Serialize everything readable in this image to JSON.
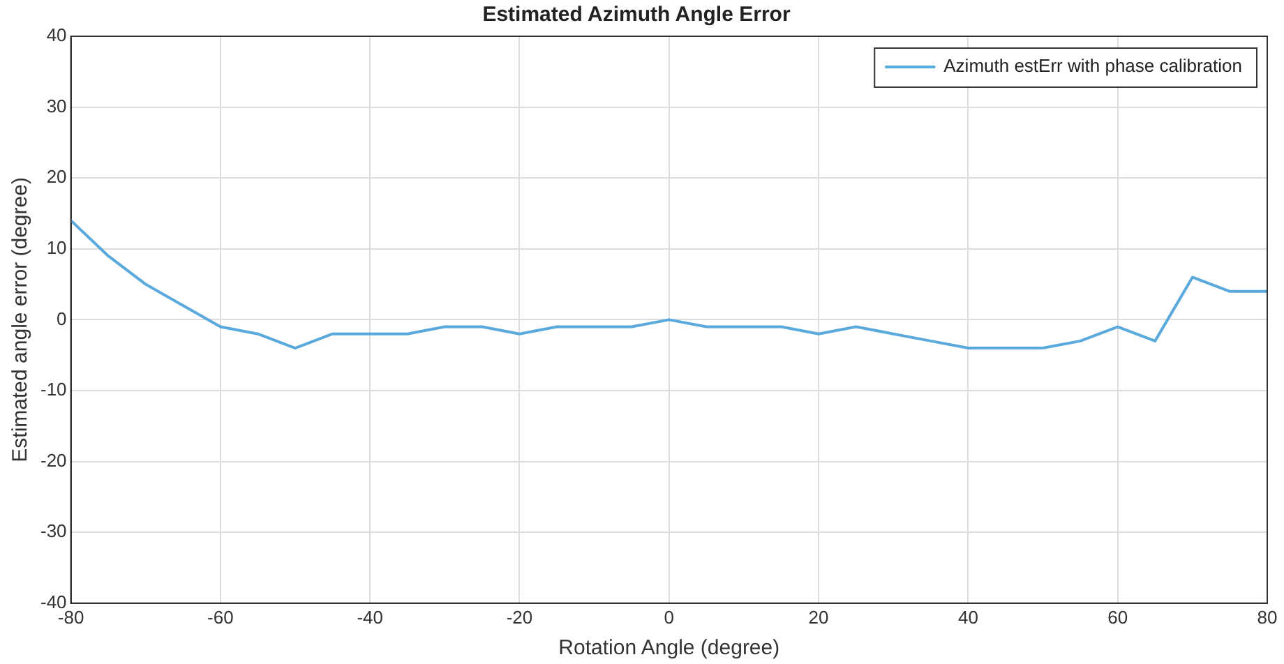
{
  "chart_data": {
    "type": "line",
    "title": "Estimated Azimuth Angle Error",
    "xlabel": "Rotation Angle (degree)",
    "ylabel": "Estimated angle error (degree)",
    "x": [
      -80,
      -75,
      -70,
      -65,
      -60,
      -55,
      -50,
      -45,
      -40,
      -35,
      -30,
      -25,
      -20,
      -15,
      -10,
      -5,
      0,
      5,
      10,
      15,
      20,
      25,
      30,
      35,
      40,
      45,
      50,
      55,
      60,
      65,
      70,
      75,
      80
    ],
    "series": [
      {
        "name": "Azimuth estErr with phase calibration",
        "color": "#5aa9dd",
        "values": [
          14,
          9,
          5,
          2,
          -1,
          -2,
          -4,
          -2,
          -2,
          -2,
          -1,
          -1,
          -2,
          -1,
          -1,
          -1,
          0,
          -1,
          -1,
          -1,
          -2,
          -1,
          -2,
          -3,
          -4,
          -4,
          -4,
          -3,
          -1,
          -3,
          6,
          4,
          4
        ]
      }
    ],
    "xlim": [
      -80,
      80
    ],
    "xticks": [
      -80,
      -60,
      -40,
      -20,
      0,
      20,
      40,
      60,
      80
    ],
    "ylim": [
      -40,
      40
    ],
    "yticks": [
      -40,
      -30,
      -20,
      -10,
      0,
      10,
      20,
      30,
      40
    ],
    "grid": true,
    "legend": "top right",
    "marker": "none",
    "line_style": "solid"
  }
}
